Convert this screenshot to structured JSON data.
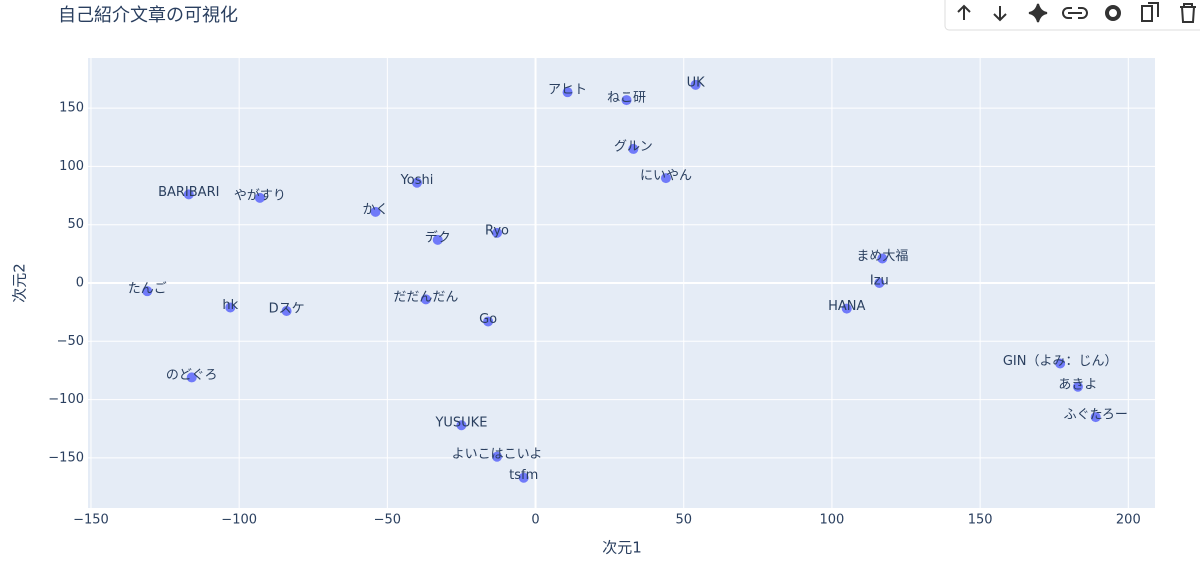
{
  "chart_data": {
    "type": "scatter",
    "title": "自己紹介文章の可視化",
    "x_label": "次元1",
    "y_label": "次元2",
    "xlim": [
      -151,
      209
    ],
    "ylim": [
      -193,
      193
    ],
    "xticks": [
      {
        "value": -150,
        "label": "−150"
      },
      {
        "value": -100,
        "label": "−100"
      },
      {
        "value": -50,
        "label": "−50"
      },
      0,
      50,
      100,
      150,
      200
    ],
    "yticks": [
      {
        "value": -150,
        "label": "−150"
      },
      {
        "value": -100,
        "label": "−100"
      },
      {
        "value": -50,
        "label": "−50"
      },
      0,
      50,
      100,
      150
    ],
    "grid": true,
    "series": [
      {
        "color": "#636efa",
        "x": [
          10.8,
          30.7,
          54,
          33,
          44,
          -117,
          -93,
          -40,
          -54,
          -33,
          -13,
          117,
          116,
          105,
          -131,
          -103,
          -84,
          -37,
          -16,
          177,
          183,
          189,
          -116,
          -25,
          -13,
          -4
        ],
        "values": [
          163.7,
          156.9,
          170,
          115,
          90,
          76,
          73,
          86,
          61,
          37,
          43,
          21,
          0,
          -22,
          -7,
          -21,
          -24,
          -14,
          -33,
          -69,
          -89,
          -115,
          -81,
          -122,
          -149,
          -167
        ],
        "text": [
          "アヒト",
          "ねこ研",
          "UK",
          "グルン",
          "にいやん",
          "BARIBARI",
          "やがすり",
          "Yoshi",
          "かく",
          "デク",
          "Ryo",
          "まめ大福",
          "Izu",
          "HANA",
          "たんご",
          "hk",
          "Dスケ",
          "だだんだん",
          "Go",
          "GIN（よみ：じん）",
          "あきよ",
          "ふぐたろー",
          "のどぐろ",
          "YUSUKE",
          "よいこはこいよ",
          "tsfm"
        ]
      }
    ]
  }
}
